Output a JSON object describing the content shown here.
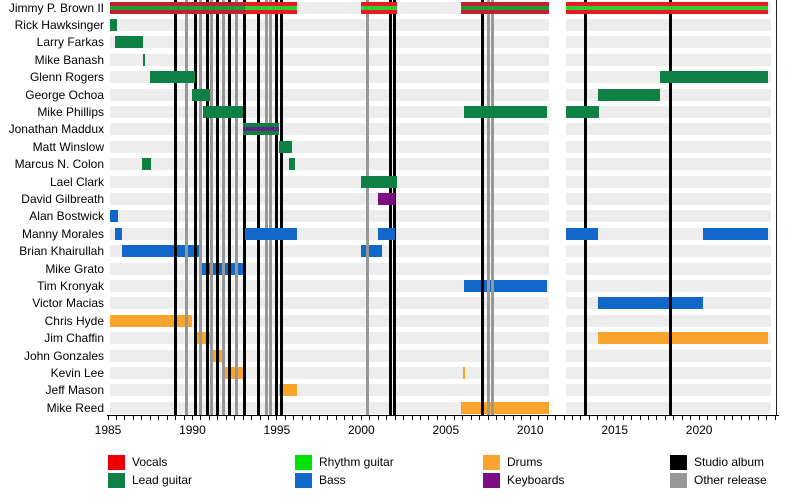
{
  "chart_data": {
    "type": "timeline",
    "description": "Band line-up timeline with roles by color and vertical release lines",
    "x_axis": {
      "min_year": 1985.1,
      "max_year": 2024.25,
      "tick_years": [
        1985,
        1990,
        1995,
        2000,
        2005,
        2010,
        2015,
        2020
      ],
      "minor_tick_step": 0.5
    },
    "colors": {
      "vocals": "#ee0000",
      "vocals_bar_normal": "#c2202f",
      "vocals_bar_bright": "#e8191f",
      "rhythm_guitar": "#00e306",
      "rhythm_stripe_normal": "#1d9e3b",
      "rhythm_stripe_bright": "#2bd033",
      "lead_guitar": "#0e8043",
      "bass": "#1168c8",
      "drums": "#f8a42d",
      "keyboards": "#7b0e80",
      "keyboards_stripe": "#5f2580",
      "studio_album": "#000000",
      "other_release": "#979797",
      "row_band": "#ededed"
    },
    "members": [
      {
        "name": "Jimmy P. Brown II",
        "role": "vocals_rhythm",
        "spans": [
          [
            1985.1,
            1993.1,
            "normal"
          ],
          [
            1993.1,
            1996.2,
            "bright"
          ],
          [
            2000.0,
            2002.1,
            "bright"
          ],
          [
            2005.9,
            2011.1,
            "normal"
          ],
          [
            2012.1,
            2024.1,
            "bright"
          ]
        ]
      },
      {
        "name": "Rick Hawksinger",
        "role": "lead_guitar",
        "spans": [
          [
            1985.1,
            1985.55
          ]
        ]
      },
      {
        "name": "Larry Farkas",
        "role": "lead_guitar",
        "spans": [
          [
            1985.4,
            1987.1
          ]
        ]
      },
      {
        "name": "Mike Banash",
        "role": "lead_guitar",
        "spans": [
          [
            1987.05,
            1987.2
          ]
        ]
      },
      {
        "name": "Glenn Rogers",
        "role": "lead_guitar",
        "spans": [
          [
            1987.5,
            1990.15
          ],
          [
            2017.7,
            2024.1
          ]
        ]
      },
      {
        "name": "George Ochoa",
        "role": "lead_guitar",
        "spans": [
          [
            1990.0,
            1991.05
          ],
          [
            2014.0,
            2017.7
          ]
        ]
      },
      {
        "name": "Mike Phillips",
        "role": "lead_guitar",
        "spans": [
          [
            1990.6,
            1993.0
          ],
          [
            2006.1,
            2011.0
          ],
          [
            2012.1,
            2014.1
          ]
        ]
      },
      {
        "name": "Jonathan Maddux",
        "role": "lead_keys",
        "spans": [
          [
            1993.0,
            1995.1
          ]
        ]
      },
      {
        "name": "Matt Winslow",
        "role": "lead_guitar",
        "spans": [
          [
            1995.1,
            1995.9
          ]
        ]
      },
      {
        "name": "Marcus N. Colon",
        "role": "lead_guitar",
        "spans": [
          [
            1987.0,
            1987.55
          ],
          [
            1995.7,
            1996.1
          ]
        ]
      },
      {
        "name": "Lael Clark",
        "role": "lead_guitar",
        "spans": [
          [
            2000.0,
            2002.1
          ]
        ]
      },
      {
        "name": "David Gilbreath",
        "role": "keyboards",
        "spans": [
          [
            2001.0,
            2002.0
          ]
        ]
      },
      {
        "name": "Alan Bostwick",
        "role": "bass",
        "spans": [
          [
            1985.1,
            1985.6
          ]
        ]
      },
      {
        "name": "Manny Morales",
        "role": "bass",
        "spans": [
          [
            1985.4,
            1985.8
          ],
          [
            1993.1,
            1996.2
          ],
          [
            2001.0,
            2002.0
          ],
          [
            2012.1,
            2014.0
          ],
          [
            2020.2,
            2024.1
          ]
        ]
      },
      {
        "name": "Brian Khairullah",
        "role": "bass",
        "spans": [
          [
            1985.8,
            1990.4
          ],
          [
            2000.0,
            2001.2
          ]
        ]
      },
      {
        "name": "Mike Grato",
        "role": "bass",
        "spans": [
          [
            1990.4,
            1993.1
          ]
        ]
      },
      {
        "name": "Tim Kronyak",
        "role": "bass",
        "spans": [
          [
            2006.1,
            2011.0
          ]
        ]
      },
      {
        "name": "Victor Macias",
        "role": "bass",
        "spans": [
          [
            2014.0,
            2020.2
          ]
        ]
      },
      {
        "name": "Chris Hyde",
        "role": "drums",
        "spans": [
          [
            1985.1,
            1990.0
          ]
        ]
      },
      {
        "name": "Jim Chaffin",
        "role": "drums",
        "spans": [
          [
            1990.1,
            1991.1
          ],
          [
            2014.0,
            2024.1
          ]
        ]
      },
      {
        "name": "John Gonzales",
        "role": "drums",
        "spans": [
          [
            1991.1,
            1991.8
          ]
        ]
      },
      {
        "name": "Kevin Lee",
        "role": "drums",
        "spans": [
          [
            1991.8,
            1993.1
          ],
          [
            2006.0,
            2006.1
          ]
        ]
      },
      {
        "name": "Jeff Mason",
        "role": "drums",
        "spans": [
          [
            1995.1,
            1996.2
          ]
        ]
      },
      {
        "name": "Mike Reed",
        "role": "drums",
        "spans": [
          [
            2005.9,
            2011.1
          ]
        ]
      }
    ],
    "studio_album_years": [
      1989.0,
      1990.2,
      1990.9,
      1991.5,
      1992.2,
      1993.1,
      1993.9,
      1995.0,
      1995.3,
      2001.7,
      2001.95,
      2007.2,
      2013.25,
      2018.3
    ],
    "other_release_years": [
      1989.65,
      1990.45,
      1991.15,
      1991.85,
      1992.6,
      1994.4,
      1994.65,
      2000.35,
      2007.5,
      2007.75
    ],
    "right_edge_line_year": 2024.55,
    "inactive_gap": [
      2011.1,
      2012.1
    ],
    "legend": [
      {
        "label": "Vocals",
        "color_key": "vocals"
      },
      {
        "label": "Lead guitar",
        "color_key": "lead_guitar"
      },
      {
        "label": "Rhythm guitar",
        "color_key": "rhythm_guitar"
      },
      {
        "label": "Bass",
        "color_key": "bass"
      },
      {
        "label": "Drums",
        "color_key": "drums"
      },
      {
        "label": "Keyboards",
        "color_key": "keyboards"
      },
      {
        "label": "Studio album",
        "color_key": "studio_album"
      },
      {
        "label": "Other release",
        "color_key": "other_release"
      }
    ]
  }
}
